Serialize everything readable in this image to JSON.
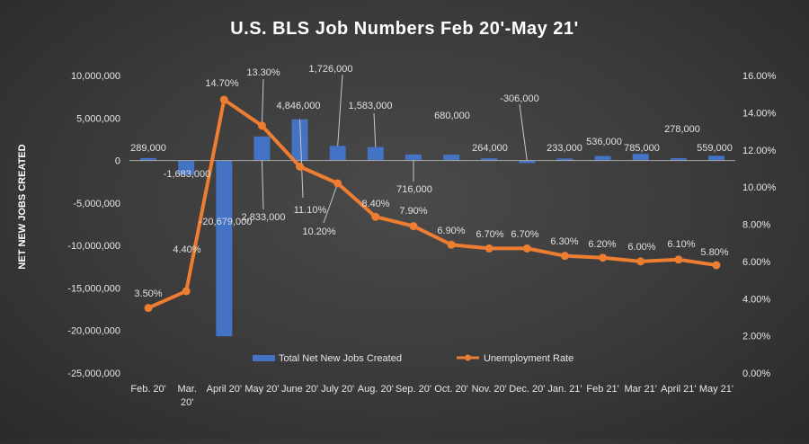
{
  "chart_data": {
    "type": "bar+line",
    "title": "U.S. BLS Job Numbers Feb 20'-May 21'",
    "ylabel_left": "NET NEW JOBS CREATED",
    "categories": [
      "Feb. 20'",
      "Mar. 20'",
      "April 20'",
      "May 20'",
      "June 20'",
      "July 20'",
      "Aug. 20'",
      "Sep. 20'",
      "Oct. 20'",
      "Nov. 20'",
      "Dec. 20'",
      "Jan. 21'",
      "Feb 21'",
      "Mar 21'",
      "April 21'",
      "May 21'"
    ],
    "series": [
      {
        "name": "Total Net New Jobs Created",
        "type": "bar",
        "axis": "left",
        "color": "#4472C4",
        "values": [
          289000,
          -1683000,
          -20679000,
          2833000,
          4846000,
          1726000,
          1583000,
          716000,
          680000,
          264000,
          -306000,
          233000,
          536000,
          785000,
          278000,
          559000
        ],
        "labels": [
          "289,000",
          "-1,683,000",
          "-20,679,000",
          "2,833,000",
          "4,846,000",
          "1,726,000",
          "1,583,000",
          "716,000",
          "680,000",
          "264,000",
          "-306,000",
          "233,000",
          "536,000",
          "785,000",
          "278,000",
          "559,000"
        ]
      },
      {
        "name": "Unemployment Rate",
        "type": "line",
        "axis": "right",
        "color": "#ED7D31",
        "values": [
          3.5,
          4.4,
          14.7,
          13.3,
          11.1,
          10.2,
          8.4,
          7.9,
          6.9,
          6.7,
          6.7,
          6.3,
          6.2,
          6.0,
          6.1,
          5.8
        ],
        "labels": [
          "3.50%",
          "4.40%",
          "14.70%",
          "13.30%",
          "11.10%",
          "10.20%",
          "8.40%",
          "7.90%",
          "6.90%",
          "6.70%",
          "6.70%",
          "6.30%",
          "6.20%",
          "6.00%",
          "6.10%",
          "5.80%"
        ]
      }
    ],
    "ylim_left": [
      -25000000,
      10000000
    ],
    "yticks_left": [
      "10,000,000",
      "5,000,000",
      "0",
      "-5,000,000",
      "-10,000,000",
      "-15,000,000",
      "-20,000,000",
      "-25,000,000"
    ],
    "ylim_right": [
      0,
      16
    ],
    "yticks_right": [
      "16.00%",
      "14.00%",
      "12.00%",
      "10.00%",
      "8.00%",
      "6.00%",
      "4.00%",
      "2.00%",
      "0.00%"
    ],
    "grid": false,
    "legend": "bottom-center"
  }
}
